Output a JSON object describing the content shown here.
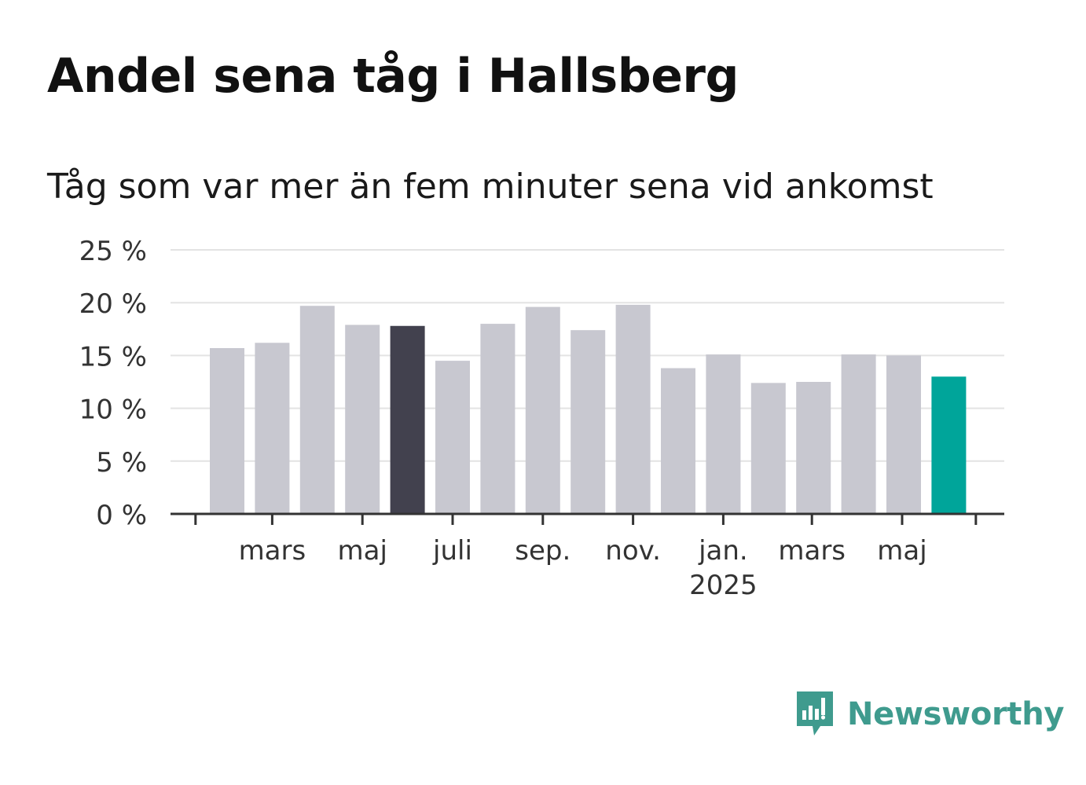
{
  "header": {
    "title": "Andel sena tåg i Hallsberg",
    "subtitle": "Tåg som var mer än fem minuter sena vid ankomst"
  },
  "brand": {
    "name": "Newsworthy",
    "icon": "newsworthy-logo-icon"
  },
  "colors": {
    "bar_default": "#c8c8d0",
    "bar_highlight": "#42414e",
    "bar_latest": "#00a59a",
    "grid": "#e3e3e3",
    "axis": "#333333",
    "brand": "#3f9b8e"
  },
  "chart_data": {
    "type": "bar",
    "title": "Andel sena tåg i Hallsberg",
    "subtitle": "Tåg som var mer än fem minuter sena vid ankomst",
    "x": [
      "2024-02",
      "2024-03",
      "2024-04",
      "2024-05",
      "2024-06",
      "2024-07",
      "2024-08",
      "2024-09",
      "2024-10",
      "2024-11",
      "2024-12",
      "2025-01",
      "2025-02",
      "2025-03",
      "2025-04",
      "2025-05",
      "2025-06"
    ],
    "values": [
      15.7,
      16.2,
      19.7,
      17.9,
      17.8,
      14.5,
      18.0,
      19.6,
      17.4,
      19.8,
      13.8,
      15.1,
      12.4,
      12.5,
      15.1,
      15.0,
      13.0
    ],
    "highlight": {
      "2024-06": "bar_highlight",
      "2025-06": "bar_latest"
    },
    "ylim": [
      0,
      25
    ],
    "yticks": [
      {
        "value": 0,
        "label": "0 %"
      },
      {
        "value": 5,
        "label": "5 %"
      },
      {
        "value": 10,
        "label": "10 %"
      },
      {
        "value": 15,
        "label": "15 %"
      },
      {
        "value": 20,
        "label": "20 %"
      },
      {
        "value": 25,
        "label": "25 %"
      }
    ],
    "xticks": [
      {
        "x": "2024-03",
        "label": "mars"
      },
      {
        "x": "2024-05",
        "label": "maj"
      },
      {
        "x": "2024-07",
        "label": "juli"
      },
      {
        "x": "2024-09",
        "label": "sep."
      },
      {
        "x": "2024-11",
        "label": "nov."
      },
      {
        "x": "2025-01",
        "label": "jan.",
        "sublabel": "2025"
      },
      {
        "x": "2025-03",
        "label": "mars"
      },
      {
        "x": "2025-05",
        "label": "maj"
      }
    ],
    "xlabel": "",
    "ylabel": "",
    "grid": true,
    "legend": "none"
  }
}
